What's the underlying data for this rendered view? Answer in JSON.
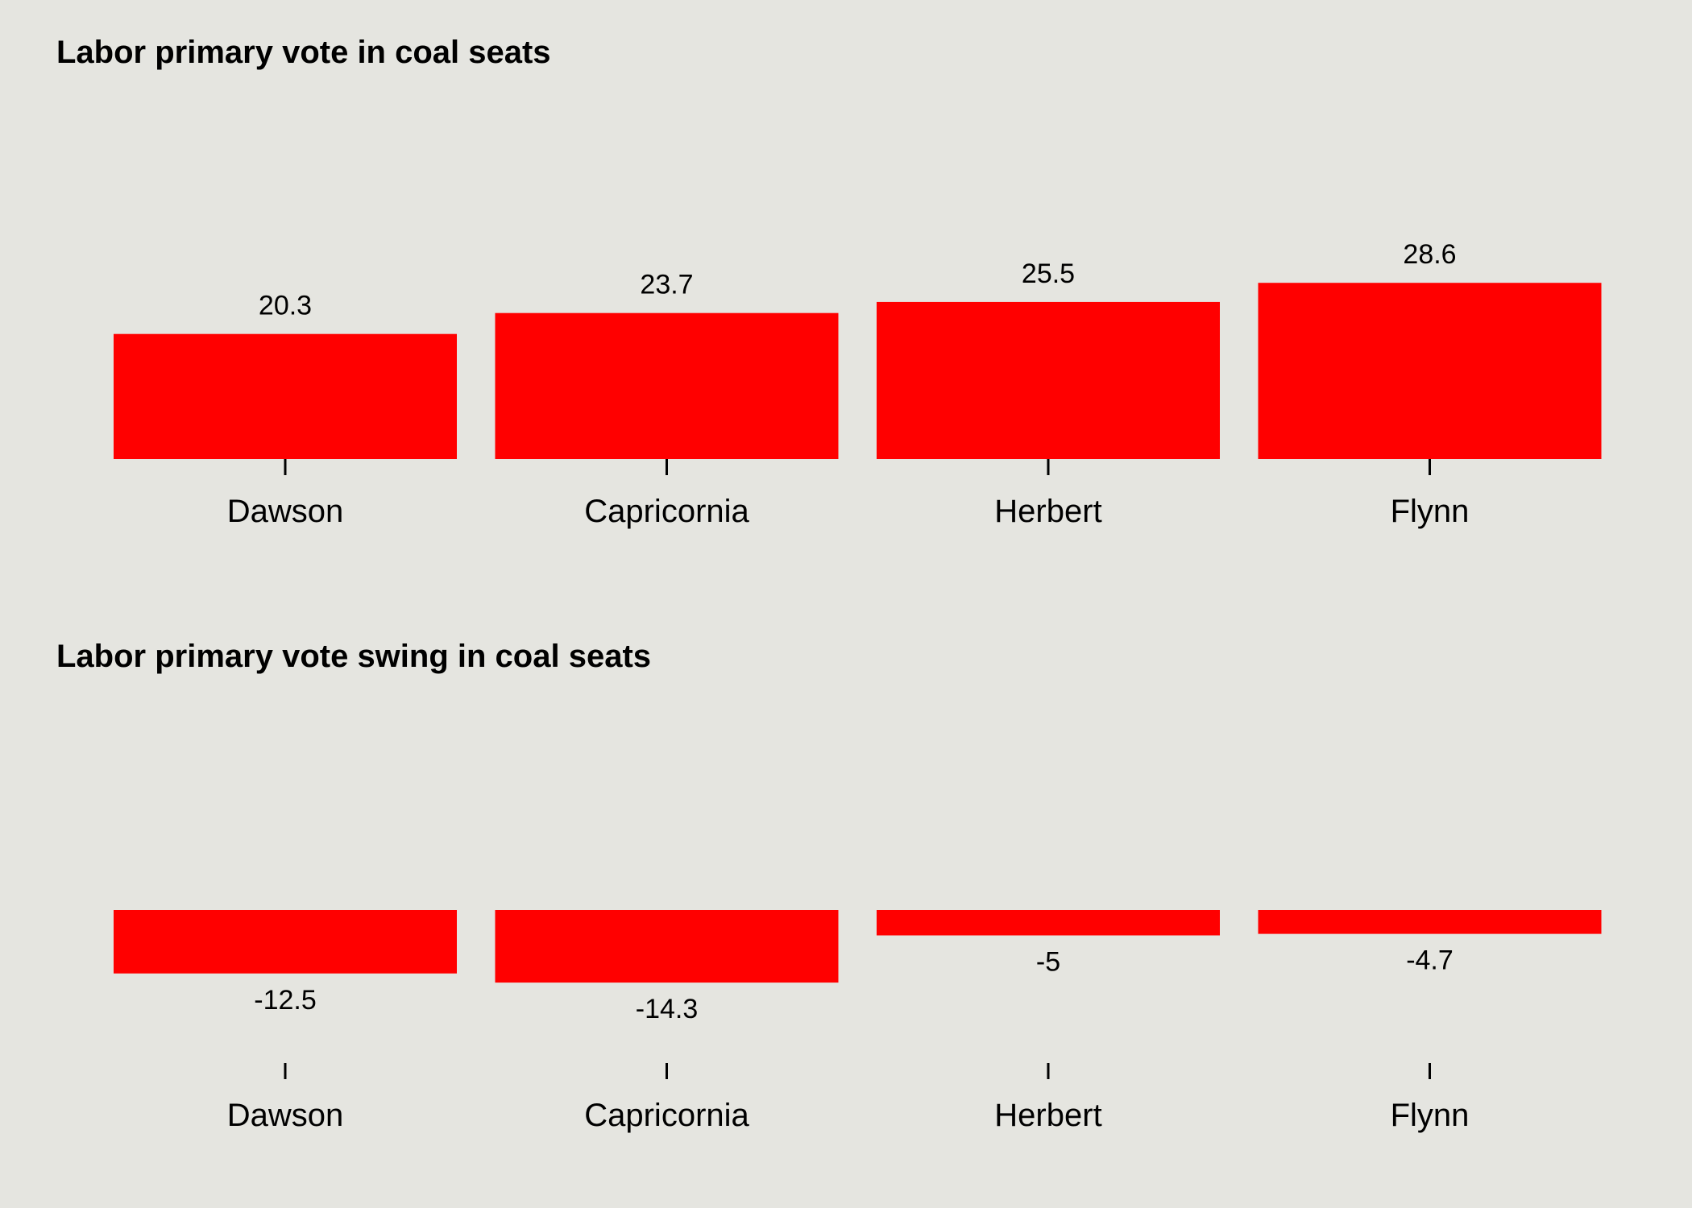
{
  "colors": {
    "background": "#e5e5e0",
    "bar": "#ff0000",
    "text": "#000000",
    "tick": "#000000"
  },
  "chart_data": [
    {
      "type": "bar",
      "title": "Labor primary vote in coal seats",
      "categories": [
        "Dawson",
        "Capricornia",
        "Herbert",
        "Flynn"
      ],
      "values": [
        20.3,
        23.7,
        25.5,
        28.6
      ],
      "value_labels": [
        "20.3",
        "23.7",
        "25.5",
        "28.6"
      ],
      "xlabel": "",
      "ylabel": "",
      "y_axis_shown": false,
      "grid": false
    },
    {
      "type": "bar",
      "title": "Labor primary vote swing in coal seats",
      "categories": [
        "Dawson",
        "Capricornia",
        "Herbert",
        "Flynn"
      ],
      "values": [
        -12.5,
        -14.3,
        -5,
        -4.7
      ],
      "value_labels": [
        "-12.5",
        "-14.3",
        "-5",
        "-4.7"
      ],
      "xlabel": "",
      "ylabel": "",
      "y_axis_shown": false,
      "grid": false
    }
  ]
}
